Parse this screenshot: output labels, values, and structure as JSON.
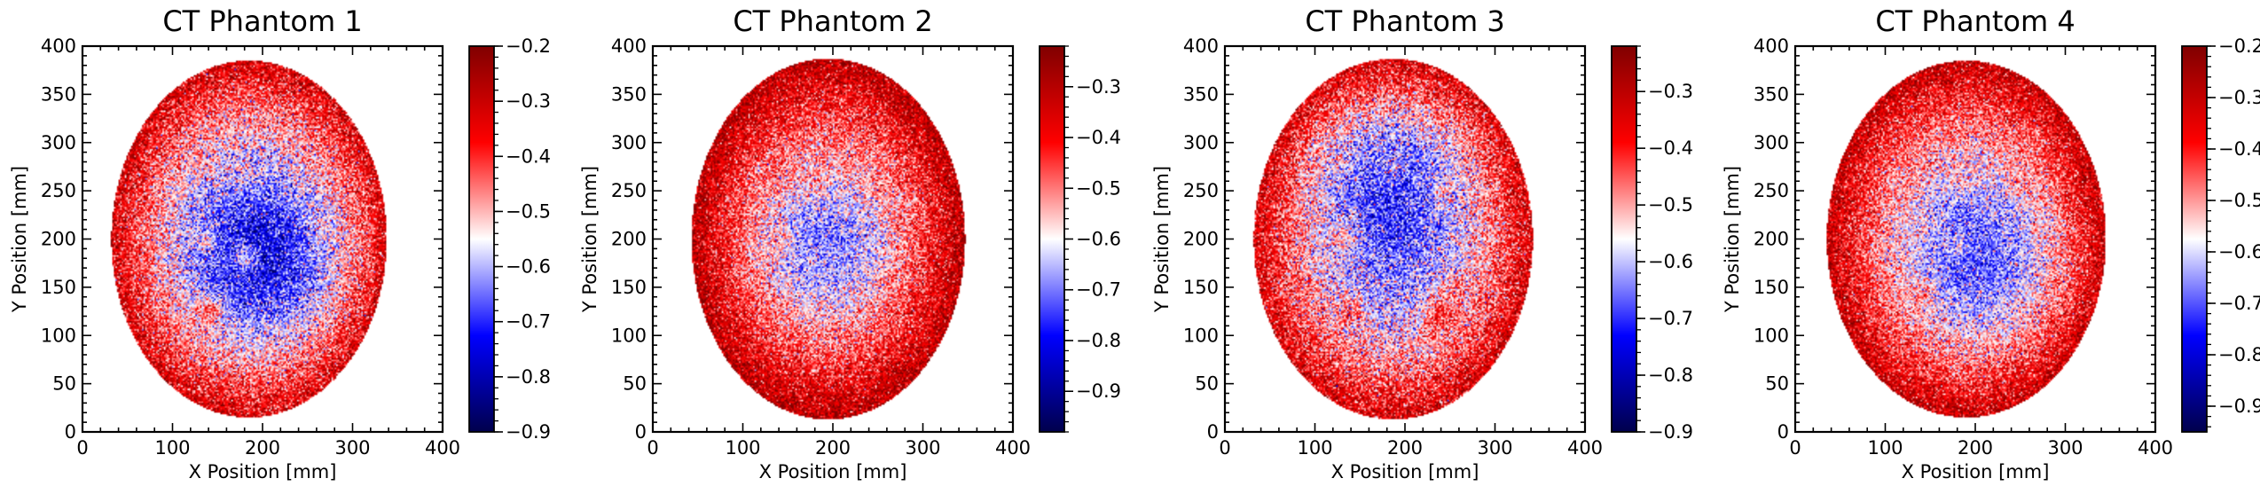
{
  "chart_data": [
    {
      "type": "heatmap",
      "title": "CT Phantom 1",
      "xlabel": "X Position [mm]",
      "ylabel": "Y Position [mm]",
      "xlim": [
        0,
        400
      ],
      "ylim": [
        0,
        400
      ],
      "x_ticks": [
        0,
        100,
        200,
        300,
        400
      ],
      "y_ticks": [
        0,
        50,
        100,
        150,
        200,
        250,
        300,
        350,
        400
      ],
      "colormap": "seismic",
      "colorbar": {
        "min": -0.9,
        "max": -0.2,
        "ticks": [
          -0.9,
          -0.8,
          -0.7,
          -0.6,
          -0.5,
          -0.4,
          -0.3,
          -0.2
        ]
      },
      "ellipse": {
        "center_x": 185,
        "center_y": 200,
        "radius_x": 153,
        "radius_y": 185
      },
      "value_center": -0.66,
      "value_edge": -0.32,
      "low_region": {
        "x": 215,
        "y": 170,
        "rx": 90,
        "ry": 80,
        "depth": -0.1
      },
      "inserts": [
        {
          "x": 130,
          "y": 280,
          "r": 18,
          "value": -0.5
        },
        {
          "x": 180,
          "y": 270,
          "r": 17,
          "value": -0.55
        },
        {
          "x": 250,
          "y": 275,
          "r": 15,
          "value": -0.5
        },
        {
          "x": 135,
          "y": 200,
          "r": 14,
          "value": -0.55
        },
        {
          "x": 180,
          "y": 180,
          "r": 15,
          "value": -0.58
        },
        {
          "x": 140,
          "y": 125,
          "r": 16,
          "value": -0.45
        },
        {
          "x": 270,
          "y": 205,
          "r": 14,
          "value": -0.55
        }
      ]
    },
    {
      "type": "heatmap",
      "title": "CT Phantom 2",
      "xlabel": "X Position [mm]",
      "ylabel": "Y Position [mm]",
      "xlim": [
        0,
        400
      ],
      "ylim": [
        0,
        400
      ],
      "x_ticks": [
        0,
        100,
        200,
        300,
        400
      ],
      "y_ticks": [
        0,
        50,
        100,
        150,
        200,
        250,
        300,
        350,
        400
      ],
      "colormap": "seismic",
      "colorbar": {
        "min": -0.98,
        "max": -0.22,
        "ticks": [
          -0.9,
          -0.8,
          -0.7,
          -0.6,
          -0.5,
          -0.4,
          -0.3
        ]
      },
      "ellipse": {
        "center_x": 195,
        "center_y": 200,
        "radius_x": 152,
        "radius_y": 187
      },
      "value_center": -0.62,
      "value_edge": -0.3,
      "low_region": {
        "x": 185,
        "y": 190,
        "rx": 70,
        "ry": 70,
        "depth": -0.08
      },
      "inserts": [
        {
          "x": 130,
          "y": 270,
          "r": 18,
          "value": -0.5
        },
        {
          "x": 185,
          "y": 265,
          "r": 17,
          "value": -0.55
        },
        {
          "x": 250,
          "y": 260,
          "r": 15,
          "value": -0.52
        },
        {
          "x": 140,
          "y": 200,
          "r": 14,
          "value": -0.55
        },
        {
          "x": 190,
          "y": 175,
          "r": 16,
          "value": -0.65
        },
        {
          "x": 135,
          "y": 120,
          "r": 15,
          "value": -0.48
        },
        {
          "x": 285,
          "y": 235,
          "r": 14,
          "value": -0.52
        }
      ]
    },
    {
      "type": "heatmap",
      "title": "CT Phantom 3",
      "xlabel": "X Position [mm]",
      "ylabel": "Y Position [mm]",
      "xlim": [
        0,
        400
      ],
      "ylim": [
        0,
        400
      ],
      "x_ticks": [
        0,
        100,
        200,
        300,
        400
      ],
      "y_ticks": [
        0,
        50,
        100,
        150,
        200,
        250,
        300,
        350,
        400
      ],
      "colormap": "seismic",
      "colorbar": {
        "min": -0.9,
        "max": -0.22,
        "ticks": [
          -0.9,
          -0.8,
          -0.7,
          -0.6,
          -0.5,
          -0.4,
          -0.3
        ]
      },
      "ellipse": {
        "center_x": 187,
        "center_y": 200,
        "radius_x": 155,
        "radius_y": 187
      },
      "value_center": -0.66,
      "value_edge": -0.34,
      "low_region": {
        "x": 185,
        "y": 280,
        "rx": 80,
        "ry": 60,
        "depth": -0.1
      },
      "inserts": [
        {
          "x": 125,
          "y": 285,
          "r": 17,
          "value": -0.55
        },
        {
          "x": 185,
          "y": 275,
          "r": 16,
          "value": -0.6
        },
        {
          "x": 245,
          "y": 250,
          "r": 15,
          "value": -0.55
        },
        {
          "x": 130,
          "y": 200,
          "r": 15,
          "value": -0.5
        },
        {
          "x": 255,
          "y": 150,
          "r": 15,
          "value": -0.5
        },
        {
          "x": 140,
          "y": 125,
          "r": 15,
          "value": -0.45
        },
        {
          "x": 240,
          "y": 120,
          "r": 20,
          "value": -0.42
        }
      ]
    },
    {
      "type": "heatmap",
      "title": "CT Phantom 4",
      "xlabel": "X Position [mm]",
      "ylabel": "Y Position [mm]",
      "xlim": [
        0,
        400
      ],
      "ylim": [
        0,
        400
      ],
      "x_ticks": [
        0,
        100,
        200,
        300,
        400
      ],
      "y_ticks": [
        0,
        50,
        100,
        150,
        200,
        250,
        300,
        350,
        400
      ],
      "colormap": "seismic",
      "colorbar": {
        "min": -0.95,
        "max": -0.2,
        "ticks": [
          -0.9,
          -0.8,
          -0.7,
          -0.6,
          -0.5,
          -0.4,
          -0.3,
          -0.2
        ]
      },
      "ellipse": {
        "center_x": 190,
        "center_y": 200,
        "radius_x": 155,
        "radius_y": 185
      },
      "value_center": -0.64,
      "value_edge": -0.3,
      "low_region": {
        "x": 220,
        "y": 160,
        "rx": 85,
        "ry": 80,
        "depth": -0.08
      },
      "inserts": [
        {
          "x": 130,
          "y": 275,
          "r": 17,
          "value": -0.5
        },
        {
          "x": 185,
          "y": 265,
          "r": 16,
          "value": -0.55
        },
        {
          "x": 250,
          "y": 265,
          "r": 15,
          "value": -0.5
        },
        {
          "x": 135,
          "y": 210,
          "r": 14,
          "value": -0.55
        },
        {
          "x": 180,
          "y": 190,
          "r": 15,
          "value": -0.62
        },
        {
          "x": 140,
          "y": 140,
          "r": 15,
          "value": -0.5
        },
        {
          "x": 280,
          "y": 210,
          "r": 14,
          "value": -0.55
        }
      ]
    }
  ]
}
